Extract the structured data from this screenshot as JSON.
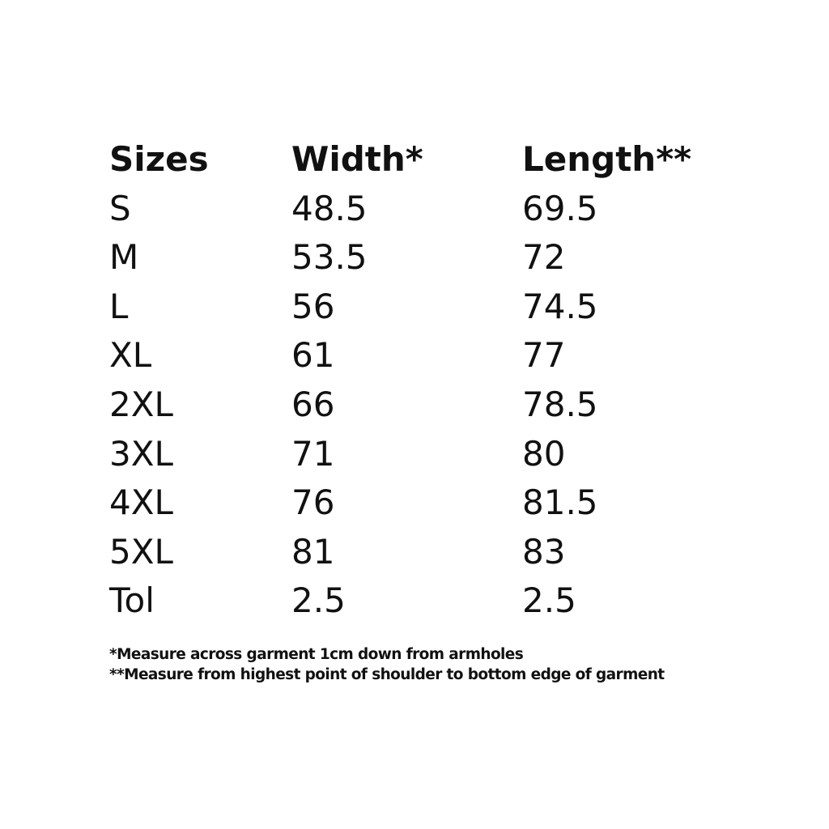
{
  "headers": [
    "Sizes",
    "Width*",
    "Length**"
  ],
  "rows": [
    [
      "S",
      "48.5",
      "69.5"
    ],
    [
      "M",
      "53.5",
      "72"
    ],
    [
      "L",
      "56",
      "74.5"
    ],
    [
      "XL",
      "61",
      "77"
    ],
    [
      "2XL",
      "66",
      "78.5"
    ],
    [
      "3XL",
      "71",
      "80"
    ],
    [
      "4XL",
      "76",
      "81.5"
    ],
    [
      "5XL",
      "81",
      "83"
    ],
    [
      "Tol",
      "2.5",
      "2.5"
    ]
  ],
  "notes": [
    "*Measure across garment 1cm down from armholes",
    "**Measure from highest point of shoulder to bottom edge of garment"
  ]
}
